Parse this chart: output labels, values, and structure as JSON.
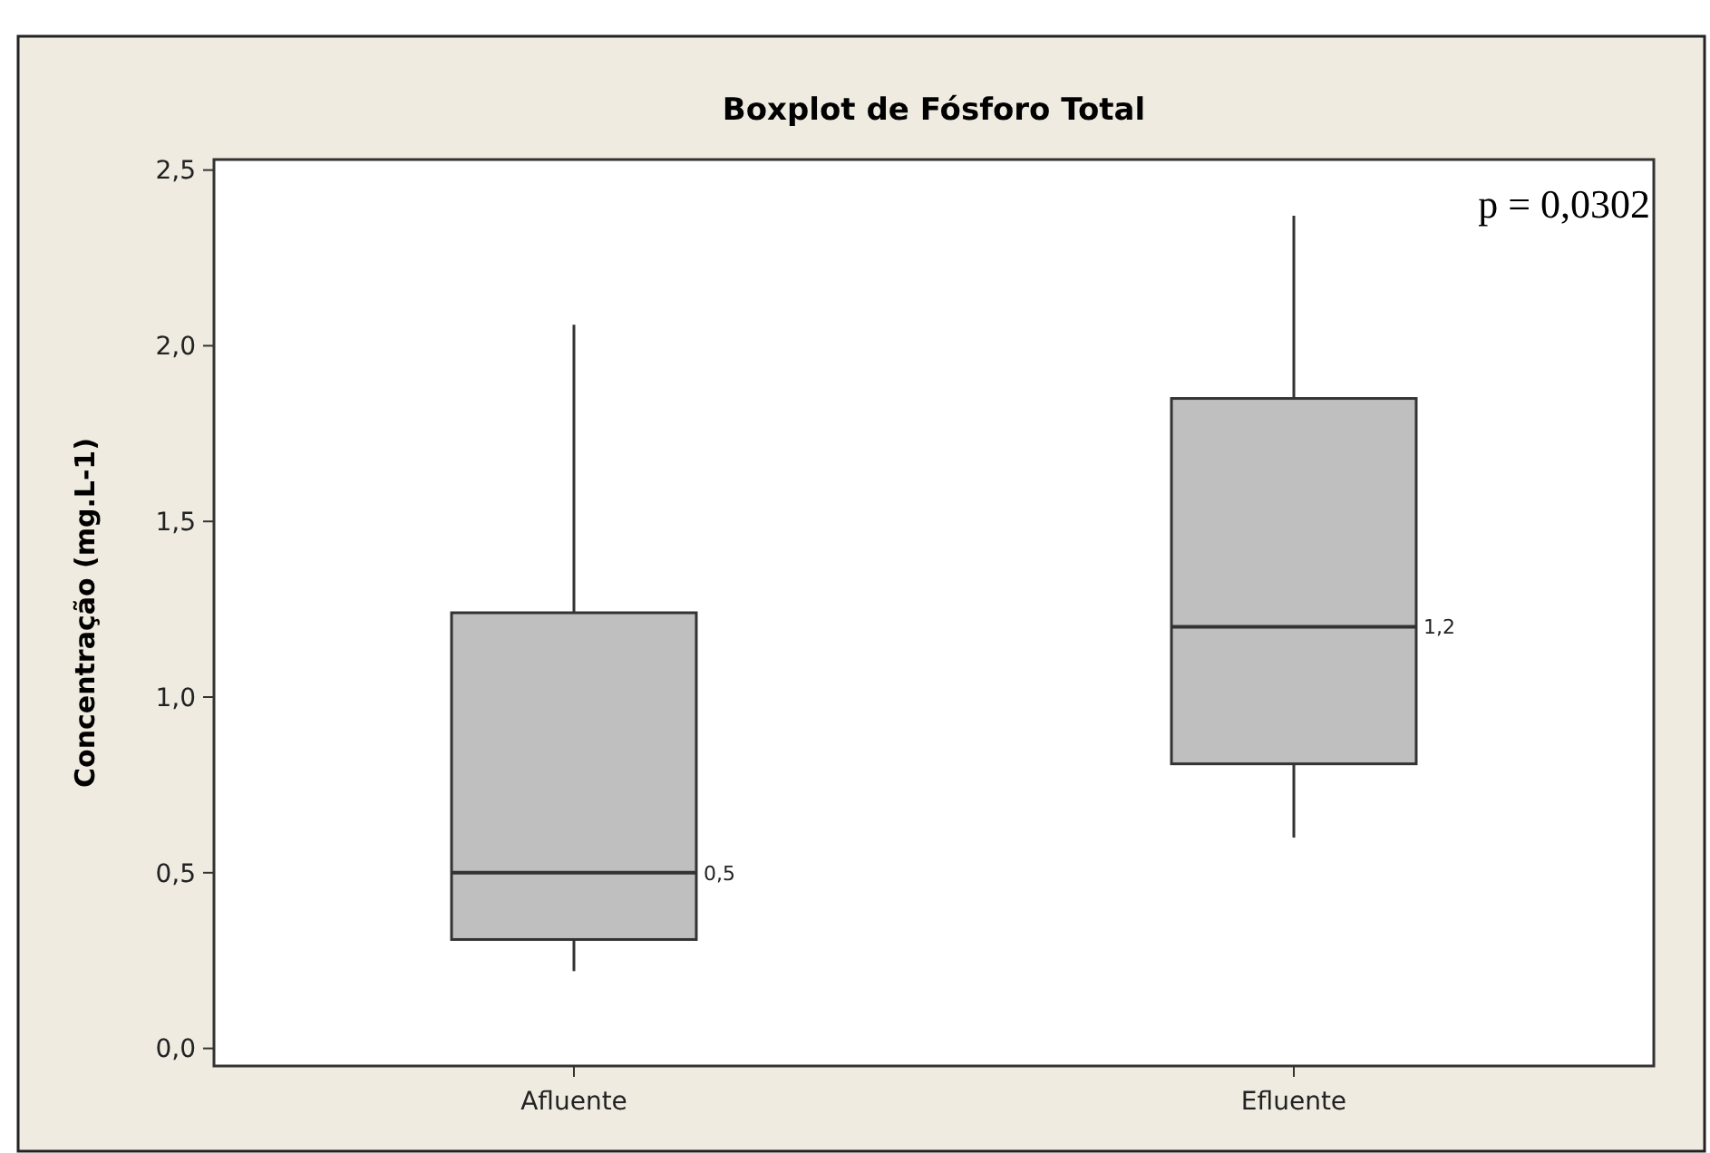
{
  "chart_data": {
    "type": "box",
    "title": "Boxplot de Fósforo Total",
    "ylabel": "Concentração (mg.L-1)",
    "categories": [
      "Afluente",
      "Efluente"
    ],
    "boxes": [
      {
        "low": 0.22,
        "q1": 0.31,
        "median": 0.5,
        "q3": 1.24,
        "high": 2.06
      },
      {
        "low": 0.6,
        "q1": 0.81,
        "median": 1.2,
        "q3": 1.85,
        "high": 2.37
      }
    ],
    "color": "#bfbfbf",
    "ylim": [
      -0.05,
      2.53
    ],
    "yticks": [
      {
        "value": 0,
        "label": "0,0"
      },
      {
        "value": 0.5,
        "label": "0,5"
      },
      {
        "value": 1,
        "label": "1,0"
      },
      {
        "value": 1.5,
        "label": "1,5"
      },
      {
        "value": 2,
        "label": "2,0"
      },
      {
        "value": 2.5,
        "label": "2,5"
      }
    ],
    "grid": false,
    "annotations": [
      "p = 0,0302",
      "0,5",
      "1,2"
    ]
  }
}
